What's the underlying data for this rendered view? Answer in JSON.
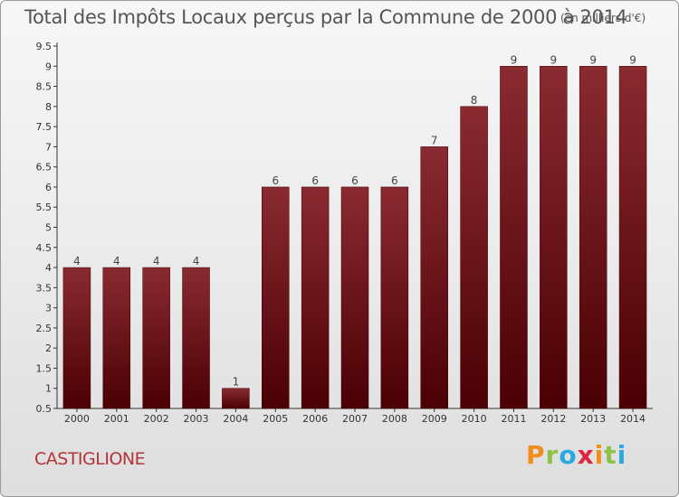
{
  "chart_data": {
    "type": "bar",
    "title": "Total des Impôts Locaux perçus par la Commune de 2000 à 2014",
    "unit_note": "(en milliers d'€)",
    "categories": [
      "2000",
      "2001",
      "2002",
      "2003",
      "2004",
      "2005",
      "2006",
      "2007",
      "2008",
      "2009",
      "2010",
      "2011",
      "2012",
      "2013",
      "2014"
    ],
    "values": [
      4,
      4,
      4,
      4,
      1,
      6,
      6,
      6,
      6,
      7,
      8,
      9,
      9,
      9,
      9
    ],
    "value_labels": [
      "4",
      "4",
      "4",
      "4",
      "1",
      "6",
      "6",
      "6",
      "6",
      "7",
      "8",
      "9",
      "9",
      "9",
      "9"
    ],
    "y_ticks": [
      0.5,
      1,
      1.5,
      2,
      2.5,
      3,
      3.5,
      4,
      4.5,
      5,
      5.5,
      6,
      6.5,
      7,
      7.5,
      8,
      8.5,
      9,
      9.5
    ],
    "y_tick_labels": [
      "0.5",
      "1",
      "1.5",
      "2",
      "2.5",
      "3",
      "3.5",
      "4",
      "4.5",
      "5",
      "5.5",
      "6",
      "6.5",
      "7",
      "7.5",
      "8",
      "8.5",
      "9",
      "9.5"
    ],
    "ylim": [
      0.5,
      9.5
    ],
    "xlabel": "",
    "ylabel": "",
    "grid": false,
    "bar_color": "#6e1a1f"
  },
  "commune": "CASTIGLIONE",
  "logo": {
    "letters": [
      "P",
      "r",
      "o",
      "x",
      "i",
      "t",
      "i"
    ]
  }
}
